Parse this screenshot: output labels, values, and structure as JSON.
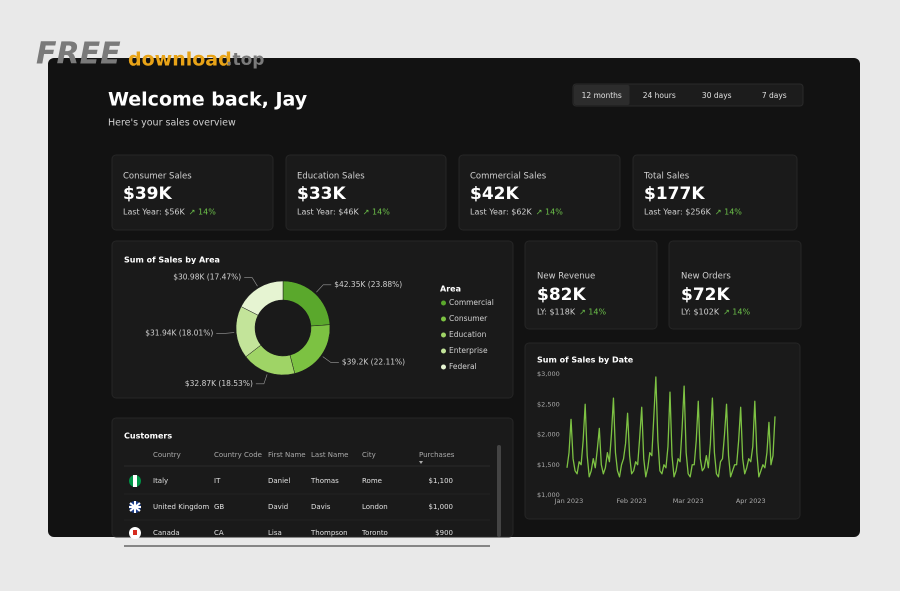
{
  "watermark": {
    "part1": "FREE",
    "part2": "download",
    "part3": ".top"
  },
  "header": {
    "title": "Welcome back, Jay",
    "subtitle": "Here's your sales overview"
  },
  "tabs": [
    "12 months",
    "24 hours",
    "30 days",
    "7 days"
  ],
  "kpis": [
    {
      "label": "Consumer Sales",
      "value": "$39K",
      "last_year": "Last Year: $56K",
      "change": "↗ 14%"
    },
    {
      "label": "Education Sales",
      "value": "$33K",
      "last_year": "Last Year: $46K",
      "change": "↗ 14%"
    },
    {
      "label": "Commercial Sales",
      "value": "$42K",
      "last_year": "Last Year: $62K",
      "change": "↗ 14%"
    },
    {
      "label": "Total Sales",
      "value": "$177K",
      "last_year": "Last Year: $256K",
      "change": "↗ 14%"
    }
  ],
  "mini_cards": [
    {
      "label": "New Revenue",
      "value": "$82K",
      "last_year": "LY: $118K",
      "change": "↗ 14%"
    },
    {
      "label": "New Orders",
      "value": "$72K",
      "last_year": "LY: $102K",
      "change": "↗ 14%"
    }
  ],
  "chart_data": [
    {
      "type": "pie",
      "donut": true,
      "title": "Sum of Sales by Area",
      "legend_title": "Area",
      "categories": [
        "Commercial",
        "Consumer",
        "Education",
        "Enterprise",
        "Federal"
      ],
      "values": [
        42.35,
        39.2,
        32.87,
        31.94,
        30.98
      ],
      "value_labels": [
        "$42.35K (23.88%)",
        "$39.2K (22.11%)",
        "$32.87K (18.53%)",
        "$31.94K (18.01%)",
        "$30.98K (17.47%)"
      ],
      "colors": [
        "#5aa82c",
        "#7cc242",
        "#9fd466",
        "#c3e49a",
        "#e6f4d2"
      ]
    },
    {
      "type": "line",
      "title": "Sum of Sales by Date",
      "color": "#7dc243",
      "categories": [
        "Jan 2023",
        null,
        null,
        null,
        null,
        null,
        null,
        null,
        null,
        null,
        null,
        null,
        null,
        null,
        null,
        null,
        null,
        null,
        null,
        null,
        null,
        null,
        null,
        null,
        null,
        null,
        null,
        null,
        null,
        null,
        null,
        "Feb 2023",
        null,
        null,
        null,
        null,
        null,
        null,
        null,
        null,
        null,
        null,
        null,
        null,
        null,
        null,
        null,
        null,
        null,
        null,
        null,
        null,
        null,
        null,
        null,
        null,
        null,
        null,
        null,
        "Mar 2023",
        null,
        null,
        null,
        null,
        null,
        null,
        null,
        null,
        null,
        null,
        null,
        null,
        null,
        null,
        null,
        null,
        null,
        null,
        null,
        null,
        null,
        null,
        null,
        null,
        null,
        null,
        null,
        null,
        null,
        null,
        "Apr 2023",
        null,
        null,
        null,
        null,
        null,
        null,
        null,
        null,
        null,
        null,
        null,
        null,
        null
      ],
      "values": [
        1450,
        1700,
        2250,
        1600,
        1400,
        1350,
        1550,
        1500,
        1900,
        2500,
        1650,
        1300,
        1400,
        1600,
        1450,
        1750,
        2100,
        1500,
        1350,
        1450,
        1700,
        1550,
        2000,
        2600,
        1700,
        1400,
        1300,
        1500,
        1600,
        1850,
        2350,
        1650,
        1350,
        1400,
        1550,
        1500,
        1950,
        2450,
        1600,
        1300,
        1450,
        1700,
        1650,
        2300,
        2950,
        1900,
        1400,
        1350,
        1500,
        1450,
        1800,
        2700,
        1650,
        1300,
        1400,
        1600,
        1550,
        2100,
        2800,
        1700,
        1350,
        1300,
        1500,
        1500,
        1900,
        2550,
        1600,
        1400,
        1450,
        1650,
        1450,
        1850,
        2600,
        1700,
        1350,
        1300,
        1550,
        1600,
        2000,
        2500,
        1650,
        1300,
        1400,
        1500,
        1500,
        1900,
        2450,
        1600,
        1350,
        1450,
        1600,
        1550,
        1800,
        2550,
        1700,
        1300,
        1400,
        1500,
        1450,
        1700,
        2200,
        1500,
        1650,
        2300
      ],
      "ylim": [
        1000,
        3000
      ],
      "yticks": [
        {
          "value": 1000,
          "label": "$1,000"
        },
        {
          "value": 1500,
          "label": "$1,500"
        },
        {
          "value": 2000,
          "label": "$2,000"
        },
        {
          "value": 2500,
          "label": "$2,500"
        },
        {
          "value": 3000,
          "label": "$3,000"
        }
      ],
      "grid": false
    }
  ],
  "customers": {
    "title": "Customers",
    "columns": [
      "Country",
      "Country Code",
      "First Name",
      "Last Name",
      "City",
      "Purchases"
    ],
    "rows": [
      [
        "Italy",
        "IT",
        "Daniel",
        "Thomas",
        "Rome",
        "$1,100"
      ],
      [
        "United Kingdom",
        "GB",
        "David",
        "Davis",
        "London",
        "$1,000"
      ],
      [
        "Canada",
        "CA",
        "Lisa",
        "Thompson",
        "Toronto",
        "$900"
      ]
    ]
  }
}
